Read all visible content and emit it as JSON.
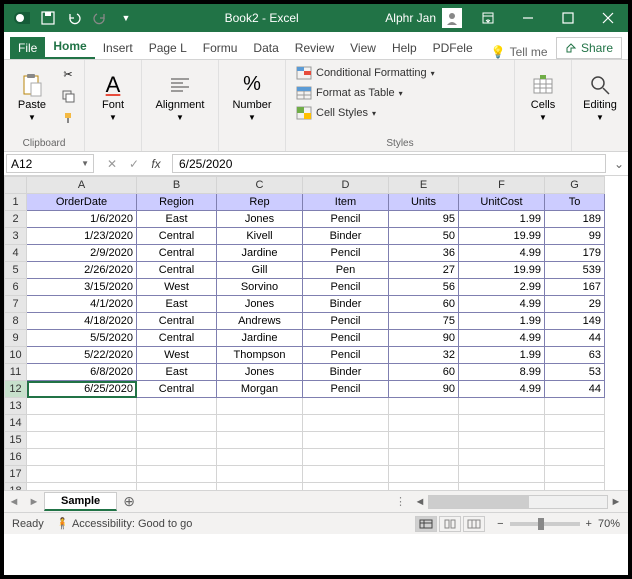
{
  "titlebar": {
    "doc_title": "Book2 - Excel",
    "user_name": "Alphr Jan"
  },
  "tabs": {
    "file": "File",
    "items": [
      "Home",
      "Insert",
      "Page L",
      "Formu",
      "Data",
      "Review",
      "View",
      "Help",
      "PDFele"
    ],
    "active_index": 0,
    "tell_me": "Tell me",
    "share": "Share"
  },
  "ribbon": {
    "clipboard": {
      "label": "Clipboard",
      "paste": "Paste"
    },
    "font": {
      "label": "Font"
    },
    "alignment": {
      "label": "Alignment"
    },
    "number": {
      "label": "Number"
    },
    "styles": {
      "label": "Styles",
      "conditional": "Conditional Formatting",
      "table": "Format as Table",
      "cellstyles": "Cell Styles"
    },
    "cells": {
      "label": "Cells"
    },
    "editing": {
      "label": "Editing"
    }
  },
  "formula_bar": {
    "name_box": "A12",
    "formula": "6/25/2020"
  },
  "sheet": {
    "columns": [
      "A",
      "B",
      "C",
      "D",
      "E",
      "F",
      "G"
    ],
    "row_count": 22,
    "header_row": [
      "OrderDate",
      "Region",
      "Rep",
      "Item",
      "Units",
      "UnitCost",
      "To"
    ],
    "rows": [
      [
        "1/6/2020",
        "East",
        "Jones",
        "Pencil",
        "95",
        "1.99",
        "189"
      ],
      [
        "1/23/2020",
        "Central",
        "Kivell",
        "Binder",
        "50",
        "19.99",
        "99"
      ],
      [
        "2/9/2020",
        "Central",
        "Jardine",
        "Pencil",
        "36",
        "4.99",
        "179"
      ],
      [
        "2/26/2020",
        "Central",
        "Gill",
        "Pen",
        "27",
        "19.99",
        "539"
      ],
      [
        "3/15/2020",
        "West",
        "Sorvino",
        "Pencil",
        "56",
        "2.99",
        "167"
      ],
      [
        "4/1/2020",
        "East",
        "Jones",
        "Binder",
        "60",
        "4.99",
        "29"
      ],
      [
        "4/18/2020",
        "Central",
        "Andrews",
        "Pencil",
        "75",
        "1.99",
        "149"
      ],
      [
        "5/5/2020",
        "Central",
        "Jardine",
        "Pencil",
        "90",
        "4.99",
        "44"
      ],
      [
        "5/22/2020",
        "West",
        "Thompson",
        "Pencil",
        "32",
        "1.99",
        "63"
      ],
      [
        "6/8/2020",
        "East",
        "Jones",
        "Binder",
        "60",
        "8.99",
        "53"
      ],
      [
        "6/25/2020",
        "Central",
        "Morgan",
        "Pencil",
        "90",
        "4.99",
        "44"
      ]
    ],
    "active_cell": {
      "row": 12,
      "col": 0
    },
    "col_align": [
      "right",
      "center",
      "center",
      "center",
      "right",
      "right",
      "right"
    ]
  },
  "sheet_tabs": {
    "active": "Sample"
  },
  "statusbar": {
    "ready": "Ready",
    "accessibility": "Accessibility: Good to go",
    "zoom": "70%"
  },
  "colors": {
    "excel_green": "#217346",
    "header_fill": "#ccccff",
    "grid_border": "#d4d4d4"
  }
}
